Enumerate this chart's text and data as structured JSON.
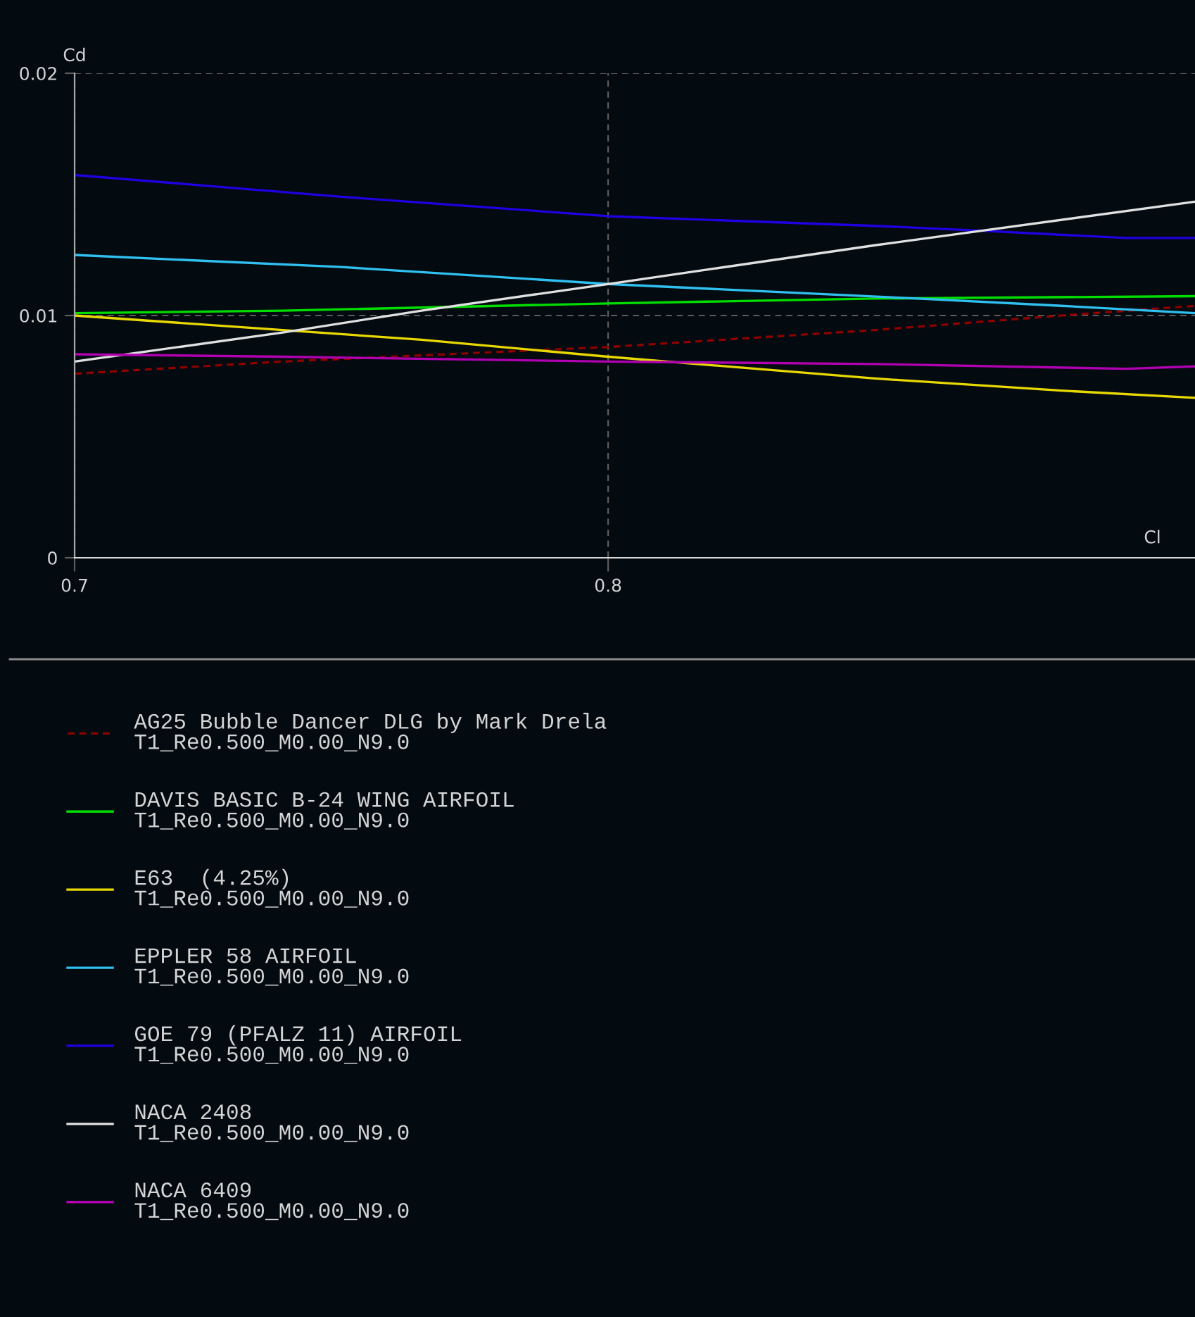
{
  "chart_data": {
    "type": "line",
    "xlabel": "Cl",
    "ylabel": "Cd",
    "xlim": [
      0.7,
      0.91
    ],
    "ylim": [
      0,
      0.02
    ],
    "xticks": [
      0.7,
      0.8
    ],
    "yticks": [
      0,
      0.01,
      0.02
    ],
    "grid": true,
    "legend": "bottom",
    "series": [
      {
        "name": "AG25 Bubble Dancer DLG by Mark Drela\nT1_Re0.500_M0.00_N9.0",
        "color": "#8b0000",
        "line_style": "dashed",
        "x": [
          0.7,
          0.739,
          0.8,
          0.85,
          0.885,
          0.91
        ],
        "values": [
          0.0076,
          0.0081,
          0.0087,
          0.0094,
          0.01,
          0.0104
        ]
      },
      {
        "name": "DAVIS BASIC B-24 WING AIRFOIL\nT1_Re0.500_M0.00_N9.0",
        "color": "#00dd00",
        "x": [
          0.7,
          0.739,
          0.8,
          0.85,
          0.91
        ],
        "values": [
          0.0101,
          0.0102,
          0.0105,
          0.0107,
          0.0108
        ]
      },
      {
        "name": "E63  (4.25%)\nT1_Re0.500_M0.00_N9.0",
        "color": "#e8d800",
        "x": [
          0.7,
          0.739,
          0.765,
          0.8,
          0.85,
          0.885,
          0.91
        ],
        "values": [
          0.01,
          0.0094,
          0.009,
          0.0083,
          0.0074,
          0.0069,
          0.0066
        ]
      },
      {
        "name": "EPPLER 58 AIRFOIL\nT1_Re0.500_M0.00_N9.0",
        "color": "#30c0f0",
        "x": [
          0.7,
          0.75,
          0.8,
          0.858,
          0.885,
          0.91
        ],
        "values": [
          0.0125,
          0.012,
          0.0113,
          0.0107,
          0.0104,
          0.0101
        ]
      },
      {
        "name": "GOE 79 (PFALZ 11) AIRFOIL\nT1_Re0.500_M0.00_N9.0",
        "color": "#2000e0",
        "x": [
          0.7,
          0.75,
          0.8,
          0.85,
          0.87,
          0.897,
          0.91
        ],
        "values": [
          0.0158,
          0.0149,
          0.0141,
          0.0137,
          0.0135,
          0.0132,
          0.0132
        ]
      },
      {
        "name": "NACA 2408\nT1_Re0.500_M0.00_N9.0",
        "color": "#e0e0e0",
        "x": [
          0.7,
          0.739,
          0.765,
          0.8,
          0.85,
          0.87,
          0.91
        ],
        "values": [
          0.0081,
          0.0093,
          0.0102,
          0.0113,
          0.0129,
          0.0135,
          0.0147
        ]
      },
      {
        "name": "NACA 6409\nT1_Re0.500_M0.00_N9.0",
        "color": "#b000b0",
        "x": [
          0.7,
          0.739,
          0.8,
          0.85,
          0.897,
          0.91
        ],
        "values": [
          0.0084,
          0.0083,
          0.0081,
          0.008,
          0.0078,
          0.0079
        ]
      }
    ]
  }
}
